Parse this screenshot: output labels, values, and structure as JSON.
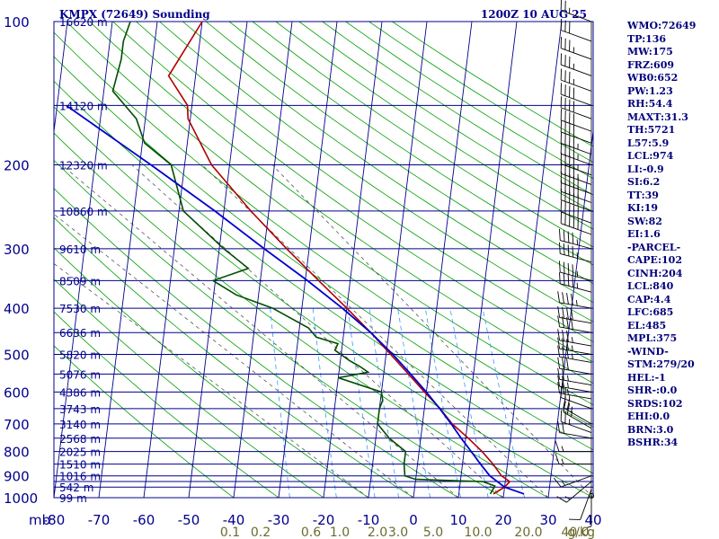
{
  "header": {
    "station": "KMPX (72649) Sounding",
    "time": "1200Z 10 AUG 25"
  },
  "indices": [
    "WMO:72649",
    "TP:136",
    "MW:175",
    "FRZ:609",
    "WB0:652",
    "PW:1.23",
    "RH:54.4",
    "MAXT:31.3",
    "TH:5721",
    "L57:5.9",
    "LCL:974",
    "LI:-0.9",
    "SI:6.2",
    "TT:39",
    "KI:19",
    "SW:82",
    "EI:1.6",
    "-PARCEL-",
    "CAPE:102",
    "CINH:204",
    "LCL:840",
    "CAP:4.4",
    "LFC:685",
    "EL:485",
    "MPL:375",
    "-WIND-",
    "STM:279/20",
    "HEL:-1",
    "SHR-:0.0",
    "SRDS:102",
    "EHI:0.0",
    "BRN:3.0",
    "BSHR:34"
  ],
  "colors": {
    "grid": "#00008b",
    "axis_text": "#00008b",
    "dry_adiabat": "#00a000",
    "moist_adiabat": "#404040",
    "mixing_ratio": "#3399ff",
    "temperature": "#b00000",
    "dewpoint": "#004d00",
    "parcel": "#0000cc",
    "wind": "#000000",
    "mixing_label": "#6b6b2e"
  },
  "chart_data": {
    "type": "line",
    "title": "",
    "y_scale": "log-pressure",
    "ylim": [
      1000,
      100
    ],
    "xlim": [
      -80,
      40
    ],
    "pressure_ticks": [
      {
        "p": 100,
        "label": "100"
      },
      {
        "p": 200,
        "label": "200"
      },
      {
        "p": 300,
        "label": "300"
      },
      {
        "p": 400,
        "label": "400"
      },
      {
        "p": 500,
        "label": "500"
      },
      {
        "p": 600,
        "label": "600"
      },
      {
        "p": 700,
        "label": "700"
      },
      {
        "p": 800,
        "label": "800"
      },
      {
        "p": 900,
        "label": "900"
      },
      {
        "p": 1000,
        "label": "1000"
      }
    ],
    "pressure_gridlines": [
      100,
      150,
      200,
      250,
      300,
      350,
      400,
      450,
      500,
      550,
      600,
      650,
      700,
      750,
      800,
      850,
      900,
      925,
      950,
      1000
    ],
    "height_labels": [
      {
        "p": 100,
        "label": "16620 m"
      },
      {
        "p": 150,
        "label": "14120 m"
      },
      {
        "p": 200,
        "label": "12320 m"
      },
      {
        "p": 250,
        "label": "10860 m"
      },
      {
        "p": 300,
        "label": "9610 m"
      },
      {
        "p": 350,
        "label": "8509 m"
      },
      {
        "p": 400,
        "label": "7530 m"
      },
      {
        "p": 450,
        "label": "6636 m"
      },
      {
        "p": 500,
        "label": "5820 m"
      },
      {
        "p": 550,
        "label": "5076 m"
      },
      {
        "p": 600,
        "label": "4386 m"
      },
      {
        "p": 650,
        "label": "3743 m"
      },
      {
        "p": 700,
        "label": "3140 m"
      },
      {
        "p": 750,
        "label": "2568 m"
      },
      {
        "p": 800,
        "label": "2025 m"
      },
      {
        "p": 850,
        "label": "1510 m"
      },
      {
        "p": 900,
        "label": "1016 m"
      },
      {
        "p": 950,
        "label": "542 m"
      },
      {
        "p": 1000,
        "label": "99 m"
      }
    ],
    "x_unit_label": "mb",
    "temperature_ticks": [
      -80,
      -70,
      -60,
      -50,
      -40,
      -30,
      -20,
      -10,
      0,
      10,
      20,
      30,
      40
    ],
    "mixing_ratio_unit": "g/kg",
    "mixing_ratio_labels": [
      "0.1",
      "0.2",
      "0.6",
      "1.0",
      "2.0",
      "3.0",
      "5.0",
      "10.0",
      "20.0",
      "40.0"
    ],
    "series": [
      {
        "name": "",
        "key": "temperature",
        "points": [
          [
            982,
            17.7
          ],
          [
            950,
            20.0
          ],
          [
            925,
            21.0
          ],
          [
            900,
            19.0
          ],
          [
            850,
            16.8
          ],
          [
            800,
            14.0
          ],
          [
            750,
            10.6
          ],
          [
            700,
            6.6
          ],
          [
            650,
            3.5
          ],
          [
            600,
            -0.4
          ],
          [
            550,
            -4.5
          ],
          [
            500,
            -9.0
          ],
          [
            450,
            -14.0
          ],
          [
            400,
            -20.0
          ],
          [
            350,
            -27.0
          ],
          [
            300,
            -35.0
          ],
          [
            250,
            -44.0
          ],
          [
            200,
            -54.0
          ],
          [
            160,
            -60.5
          ],
          [
            150,
            -61.0
          ],
          [
            130,
            -66.0
          ],
          [
            100,
            -60.0
          ]
        ]
      },
      {
        "name": "",
        "key": "dewpoint",
        "points": [
          [
            982,
            17.0
          ],
          [
            960,
            17.5
          ],
          [
            945,
            17.8
          ],
          [
            925,
            15.0
          ],
          [
            915,
            0.0
          ],
          [
            900,
            -2.5
          ],
          [
            850,
            -3.0
          ],
          [
            800,
            -3.0
          ],
          [
            750,
            -7.0
          ],
          [
            700,
            -10.0
          ],
          [
            650,
            -10.0
          ],
          [
            625,
            -9.5
          ],
          [
            600,
            -10.0
          ],
          [
            560,
            -20.0
          ],
          [
            545,
            -13.5
          ],
          [
            530,
            -15.5
          ],
          [
            515,
            -18.0
          ],
          [
            490,
            -21.5
          ],
          [
            475,
            -21.0
          ],
          [
            460,
            -26.0
          ],
          [
            440,
            -28.0
          ],
          [
            400,
            -36.5
          ],
          [
            375,
            -45.0
          ],
          [
            350,
            -50.5
          ],
          [
            330,
            -43.0
          ],
          [
            300,
            -49.0
          ],
          [
            250,
            -59.0
          ],
          [
            200,
            -63.0
          ],
          [
            180,
            -69.5
          ],
          [
            160,
            -72.0
          ],
          [
            140,
            -78.0
          ],
          [
            120,
            -77.0
          ],
          [
            110,
            -77.0
          ],
          [
            100,
            -76.0
          ]
        ]
      },
      {
        "name": "",
        "key": "parcel",
        "points": [
          [
            982,
            24.5
          ],
          [
            950,
            20.0
          ],
          [
            900,
            16.4
          ],
          [
            850,
            14.0
          ],
          [
            800,
            11.6
          ],
          [
            750,
            9.0
          ],
          [
            700,
            6.4
          ],
          [
            650,
            3.4
          ],
          [
            600,
            0.0
          ],
          [
            550,
            -4.0
          ],
          [
            500,
            -8.5
          ],
          [
            450,
            -14.0
          ],
          [
            400,
            -21.0
          ],
          [
            350,
            -29.5
          ],
          [
            300,
            -40.0
          ],
          [
            250,
            -52.0
          ],
          [
            200,
            -67.5
          ],
          [
            150,
            -88.0
          ]
        ]
      }
    ],
    "wind_barbs": [
      {
        "p": 982,
        "dir": 180,
        "spd": 5
      },
      {
        "p": 960,
        "dir": 200,
        "spd": 10
      },
      {
        "p": 925,
        "dir": 230,
        "spd": 15
      },
      {
        "p": 900,
        "dir": 250,
        "spd": 15
      },
      {
        "p": 850,
        "dir": 270,
        "spd": 15
      },
      {
        "p": 800,
        "dir": 270,
        "spd": 15
      },
      {
        "p": 750,
        "dir": 280,
        "spd": 20
      },
      {
        "p": 730,
        "dir": 290,
        "spd": 25
      },
      {
        "p": 715,
        "dir": 300,
        "spd": 25
      },
      {
        "p": 700,
        "dir": 300,
        "spd": 25
      },
      {
        "p": 650,
        "dir": 290,
        "spd": 25
      },
      {
        "p": 620,
        "dir": 280,
        "spd": 25
      },
      {
        "p": 600,
        "dir": 280,
        "spd": 25
      },
      {
        "p": 580,
        "dir": 280,
        "spd": 25
      },
      {
        "p": 550,
        "dir": 280,
        "spd": 30
      },
      {
        "p": 520,
        "dir": 280,
        "spd": 35
      },
      {
        "p": 500,
        "dir": 280,
        "spd": 35
      },
      {
        "p": 480,
        "dir": 280,
        "spd": 35
      },
      {
        "p": 450,
        "dir": 280,
        "spd": 40
      },
      {
        "p": 430,
        "dir": 280,
        "spd": 40
      },
      {
        "p": 400,
        "dir": 280,
        "spd": 45
      },
      {
        "p": 370,
        "dir": 285,
        "spd": 45
      },
      {
        "p": 350,
        "dir": 285,
        "spd": 45
      },
      {
        "p": 320,
        "dir": 285,
        "spd": 45
      },
      {
        "p": 300,
        "dir": 285,
        "spd": 45
      },
      {
        "p": 280,
        "dir": 290,
        "spd": 50
      },
      {
        "p": 265,
        "dir": 290,
        "spd": 50
      },
      {
        "p": 250,
        "dir": 290,
        "spd": 50
      },
      {
        "p": 240,
        "dir": 290,
        "spd": 50
      },
      {
        "p": 230,
        "dir": 290,
        "spd": 50
      },
      {
        "p": 220,
        "dir": 290,
        "spd": 45
      },
      {
        "p": 210,
        "dir": 290,
        "spd": 45
      },
      {
        "p": 200,
        "dir": 290,
        "spd": 45
      },
      {
        "p": 190,
        "dir": 290,
        "spd": 45
      },
      {
        "p": 180,
        "dir": 290,
        "spd": 40
      },
      {
        "p": 170,
        "dir": 290,
        "spd": 40
      },
      {
        "p": 160,
        "dir": 290,
        "spd": 40
      },
      {
        "p": 150,
        "dir": 290,
        "spd": 40
      },
      {
        "p": 140,
        "dir": 290,
        "spd": 35
      },
      {
        "p": 130,
        "dir": 290,
        "spd": 35
      },
      {
        "p": 120,
        "dir": 290,
        "spd": 35
      },
      {
        "p": 110,
        "dir": 290,
        "spd": 30
      },
      {
        "p": 100,
        "dir": 290,
        "spd": 25
      }
    ]
  }
}
